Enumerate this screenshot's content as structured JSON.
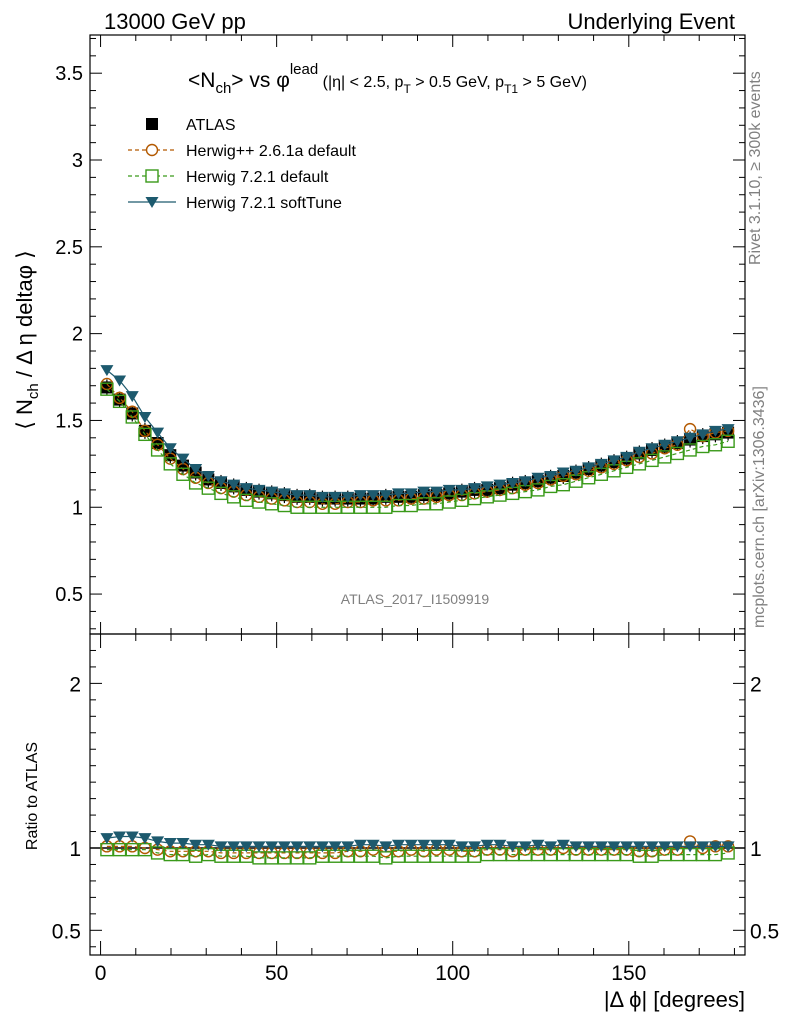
{
  "header": {
    "left": "13000 GeV pp",
    "right": "Underlying Event"
  },
  "side_labels": {
    "top": "Rivet 3.1.10, ≥ 300k events",
    "bottom": "mcplots.cern.ch [arXiv:1306.3436]"
  },
  "watermark": "ATLAS_2017_I1509919",
  "colors": {
    "atlas": "#000000",
    "herwigpp": "#b35900",
    "herwig721": "#3a9a1a",
    "softtune": "#1d5a6e",
    "gray_text": "#808080"
  },
  "chart_data": [
    {
      "type": "scatter",
      "title_parts": {
        "main": "<N",
        "main_sub": "ch",
        "mid": "> vs φ",
        "mid_sup": "lead",
        "cuts_1": " (|η| < 2.5, p",
        "cuts_1_sub": "T",
        "cuts_2": " > 0.5 GeV, p",
        "cuts_2_sub": "T1",
        "cuts_3": " > 5 GeV)"
      },
      "ylabel": "⟨ N_ch / Δ η deltaφ ⟩",
      "ylabel_parts": {
        "pre": "⟨ N",
        "sub": "ch",
        "post": " / Δ η deltaφ ⟩"
      },
      "xlim": [
        -3,
        183
      ],
      "ylim": [
        0.27,
        3.72
      ],
      "ytick_values": [
        0.5,
        1,
        1.5,
        2,
        2.5,
        3,
        3.5
      ],
      "ytick_labels": [
        "0.5",
        "1",
        "1.5",
        "2",
        "2.5",
        "3",
        "3.5"
      ],
      "legend_position": "top-left",
      "x": [
        1.8,
        5.4,
        9.0,
        12.6,
        16.2,
        19.8,
        23.4,
        27.0,
        30.6,
        34.2,
        37.8,
        41.4,
        45.0,
        48.6,
        52.2,
        55.8,
        59.4,
        63.0,
        66.6,
        70.2,
        73.8,
        77.4,
        81.0,
        84.6,
        88.2,
        91.8,
        95.4,
        99.0,
        102.6,
        106.2,
        109.8,
        113.4,
        117.0,
        120.6,
        124.2,
        127.8,
        131.4,
        135.0,
        138.6,
        142.2,
        145.8,
        149.4,
        153.0,
        156.6,
        160.2,
        163.8,
        167.4,
        171.0,
        174.6,
        178.2
      ],
      "series": [
        {
          "name": "ATLAS",
          "marker": "filled-square",
          "color": "#000000",
          "line": "none",
          "values": [
            1.69,
            1.62,
            1.54,
            1.44,
            1.37,
            1.3,
            1.24,
            1.2,
            1.16,
            1.14,
            1.12,
            1.1,
            1.09,
            1.08,
            1.07,
            1.06,
            1.06,
            1.05,
            1.05,
            1.05,
            1.05,
            1.05,
            1.06,
            1.06,
            1.06,
            1.07,
            1.07,
            1.08,
            1.09,
            1.1,
            1.1,
            1.11,
            1.13,
            1.14,
            1.15,
            1.17,
            1.18,
            1.2,
            1.22,
            1.24,
            1.26,
            1.28,
            1.31,
            1.33,
            1.35,
            1.37,
            1.39,
            1.41,
            1.42,
            1.43
          ]
        },
        {
          "name": "Herwig++ 2.6.1a default",
          "marker": "open-circle",
          "color": "#b35900",
          "line": "dashed",
          "values": [
            1.71,
            1.63,
            1.55,
            1.44,
            1.36,
            1.28,
            1.22,
            1.17,
            1.14,
            1.11,
            1.09,
            1.07,
            1.06,
            1.05,
            1.04,
            1.03,
            1.03,
            1.02,
            1.02,
            1.03,
            1.03,
            1.04,
            1.04,
            1.04,
            1.05,
            1.05,
            1.06,
            1.07,
            1.07,
            1.08,
            1.09,
            1.1,
            1.11,
            1.13,
            1.14,
            1.16,
            1.18,
            1.19,
            1.21,
            1.23,
            1.25,
            1.27,
            1.29,
            1.31,
            1.34,
            1.36,
            1.45,
            1.41,
            1.43,
            1.44
          ]
        },
        {
          "name": "Herwig 7.2.1 default",
          "marker": "open-square",
          "color": "#3a9a1a",
          "line": "dashed",
          "values": [
            1.68,
            1.61,
            1.52,
            1.42,
            1.33,
            1.25,
            1.19,
            1.14,
            1.11,
            1.08,
            1.06,
            1.04,
            1.03,
            1.02,
            1.01,
            1.0,
            1.0,
            1.0,
            1.0,
            1.0,
            1.0,
            1.0,
            1.0,
            1.01,
            1.01,
            1.02,
            1.02,
            1.03,
            1.04,
            1.05,
            1.06,
            1.07,
            1.08,
            1.09,
            1.1,
            1.12,
            1.13,
            1.15,
            1.17,
            1.19,
            1.21,
            1.23,
            1.25,
            1.27,
            1.29,
            1.31,
            1.33,
            1.35,
            1.36,
            1.38
          ]
        },
        {
          "name": "Herwig 7.2.1 softTune",
          "marker": "filled-triangle-down",
          "color": "#1d5a6e",
          "line": "solid",
          "values": [
            1.79,
            1.73,
            1.64,
            1.52,
            1.43,
            1.34,
            1.28,
            1.22,
            1.18,
            1.15,
            1.13,
            1.11,
            1.1,
            1.09,
            1.08,
            1.07,
            1.07,
            1.06,
            1.06,
            1.06,
            1.07,
            1.07,
            1.07,
            1.08,
            1.08,
            1.09,
            1.09,
            1.1,
            1.1,
            1.11,
            1.12,
            1.13,
            1.14,
            1.15,
            1.17,
            1.18,
            1.2,
            1.21,
            1.23,
            1.25,
            1.27,
            1.29,
            1.32,
            1.34,
            1.36,
            1.38,
            1.4,
            1.42,
            1.44,
            1.45
          ]
        }
      ]
    },
    {
      "type": "scatter",
      "ylabel": "Ratio to ATLAS",
      "xlabel": "|Δ ϕ| [degrees]",
      "xlim": [
        -3,
        183
      ],
      "ylim": [
        0.35,
        2.3
      ],
      "xtick_values": [
        0,
        50,
        100,
        150
      ],
      "xtick_labels": [
        "0",
        "50",
        "100",
        "150"
      ],
      "ytick_values": [
        0.5,
        1,
        2
      ],
      "ytick_labels": [
        "0.5",
        "1",
        "2"
      ],
      "reference_line": 1,
      "x": [
        1.8,
        5.4,
        9.0,
        12.6,
        16.2,
        19.8,
        23.4,
        27.0,
        30.6,
        34.2,
        37.8,
        41.4,
        45.0,
        48.6,
        52.2,
        55.8,
        59.4,
        63.0,
        66.6,
        70.2,
        73.8,
        77.4,
        81.0,
        84.6,
        88.2,
        91.8,
        95.4,
        99.0,
        102.6,
        106.2,
        109.8,
        113.4,
        117.0,
        120.6,
        124.2,
        127.8,
        131.4,
        135.0,
        138.6,
        142.2,
        145.8,
        149.4,
        153.0,
        156.6,
        160.2,
        163.8,
        167.4,
        171.0,
        174.6,
        178.2
      ],
      "series": [
        {
          "name": "Herwig++ 2.6.1a default",
          "marker": "open-circle",
          "color": "#b35900",
          "line": "dashed",
          "values": [
            1.01,
            1.01,
            1.01,
            1.0,
            0.99,
            0.98,
            0.98,
            0.98,
            0.98,
            0.97,
            0.97,
            0.97,
            0.97,
            0.97,
            0.97,
            0.97,
            0.97,
            0.97,
            0.97,
            0.98,
            0.98,
            0.99,
            0.98,
            0.98,
            0.99,
            0.98,
            0.99,
            0.99,
            0.98,
            0.98,
            0.99,
            0.99,
            0.98,
            0.99,
            0.99,
            0.99,
            1.0,
            0.99,
            0.99,
            0.99,
            0.99,
            0.99,
            0.98,
            0.98,
            0.99,
            0.99,
            1.04,
            1.0,
            1.01,
            1.01
          ]
        },
        {
          "name": "Herwig 7.2.1 default",
          "marker": "open-square",
          "color": "#3a9a1a",
          "line": "dashed",
          "values": [
            0.99,
            0.99,
            0.99,
            0.99,
            0.97,
            0.96,
            0.96,
            0.95,
            0.96,
            0.95,
            0.95,
            0.95,
            0.94,
            0.94,
            0.94,
            0.94,
            0.94,
            0.95,
            0.95,
            0.95,
            0.95,
            0.95,
            0.94,
            0.95,
            0.95,
            0.95,
            0.95,
            0.95,
            0.95,
            0.95,
            0.96,
            0.96,
            0.96,
            0.96,
            0.96,
            0.96,
            0.96,
            0.96,
            0.96,
            0.96,
            0.96,
            0.96,
            0.95,
            0.95,
            0.96,
            0.96,
            0.96,
            0.96,
            0.96,
            0.97
          ]
        },
        {
          "name": "Herwig 7.2.1 softTune",
          "marker": "filled-triangle-down",
          "color": "#1d5a6e",
          "line": "solid",
          "values": [
            1.06,
            1.07,
            1.07,
            1.06,
            1.04,
            1.03,
            1.03,
            1.02,
            1.02,
            1.01,
            1.01,
            1.01,
            1.01,
            1.01,
            1.01,
            1.01,
            1.01,
            1.01,
            1.01,
            1.01,
            1.02,
            1.02,
            1.01,
            1.02,
            1.02,
            1.02,
            1.02,
            1.02,
            1.01,
            1.01,
            1.02,
            1.02,
            1.01,
            1.01,
            1.02,
            1.01,
            1.02,
            1.01,
            1.01,
            1.01,
            1.01,
            1.01,
            1.01,
            1.01,
            1.01,
            1.01,
            1.01,
            1.01,
            1.01,
            1.01
          ]
        }
      ]
    }
  ]
}
